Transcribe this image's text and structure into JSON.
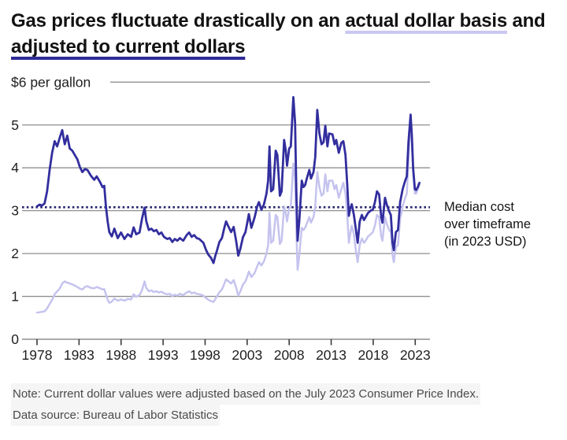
{
  "title": {
    "part1": "Gas prices fluctuate drastically on an ",
    "highlight_actual": "actual dollar basis",
    "part2": " and ",
    "highlight_adjusted": "adjusted to current dollars"
  },
  "annotation": {
    "lines": [
      "Median cost",
      "over timeframe",
      "(in 2023 USD)"
    ]
  },
  "notes": {
    "note": "Note: Current dollar values were adjusted based on the July 2023 Consumer Price Index.",
    "source": "Data source: Bureau of Labor Statistics"
  },
  "colors": {
    "navy": "#322e9e",
    "lavender": "#c5c3ee",
    "median": "#26246d",
    "grid": "#8f8f8f",
    "axis": "#777777",
    "tick": "#3a3a3a",
    "axis_text": "#1f1f1f"
  },
  "chart_data": {
    "type": "line",
    "title": "Gas prices fluctuate drastically on an actual dollar basis and adjusted to current dollars",
    "y_top_label": "$6 per gallon",
    "y_ticks": [
      0,
      1,
      2,
      3,
      4,
      5
    ],
    "y_max": 6,
    "x_ticks": [
      1978,
      1983,
      1988,
      1993,
      1998,
      2003,
      2008,
      2013,
      2018,
      2023
    ],
    "ylim": [
      0,
      6
    ],
    "xlim": [
      1978,
      2024.7
    ],
    "grid": true,
    "legend_position": "title-underlines",
    "median": {
      "value": 3.08,
      "label": "Median cost over timeframe (in 2023 USD)"
    },
    "x": [
      1978.0,
      1978.3,
      1978.6,
      1978.9,
      1979.2,
      1979.5,
      1979.8,
      1980.1,
      1980.4,
      1980.7,
      1981.0,
      1981.3,
      1981.6,
      1981.9,
      1982.2,
      1982.5,
      1982.8,
      1983.1,
      1983.4,
      1983.7,
      1984.0,
      1984.4,
      1984.8,
      1985.1,
      1985.5,
      1985.8,
      1986.0,
      1986.2,
      1986.4,
      1986.6,
      1986.9,
      1987.2,
      1987.6,
      1988.0,
      1988.4,
      1988.8,
      1989.2,
      1989.5,
      1989.8,
      1990.2,
      1990.5,
      1990.8,
      1991.0,
      1991.3,
      1991.6,
      1991.9,
      1992.2,
      1992.5,
      1992.8,
      1993.1,
      1993.5,
      1993.8,
      1994.1,
      1994.4,
      1994.7,
      1995.0,
      1995.4,
      1995.8,
      1996.1,
      1996.4,
      1996.7,
      1997.0,
      1997.3,
      1997.8,
      1998.1,
      1998.4,
      1998.7,
      1999.0,
      1999.2,
      1999.4,
      1999.7,
      2000.0,
      2000.3,
      2000.5,
      2000.8,
      2001.1,
      2001.4,
      2001.7,
      2001.95,
      2002.2,
      2002.5,
      2002.8,
      2003.0,
      2003.2,
      2003.5,
      2003.9,
      2004.2,
      2004.4,
      2004.7,
      2005.0,
      2005.3,
      2005.5,
      2005.66,
      2005.85,
      2006.1,
      2006.4,
      2006.6,
      2006.9,
      2007.1,
      2007.4,
      2007.6,
      2007.75,
      2008.0,
      2008.2,
      2008.5,
      2008.7,
      2008.85,
      2009.0,
      2009.2,
      2009.5,
      2009.7,
      2009.9,
      2010.1,
      2010.4,
      2010.6,
      2010.9,
      2011.1,
      2011.35,
      2011.6,
      2011.85,
      2012.1,
      2012.3,
      2012.55,
      2012.75,
      2013.15,
      2013.4,
      2013.6,
      2013.9,
      2014.2,
      2014.45,
      2014.7,
      2014.9,
      2015.1,
      2015.25,
      2015.45,
      2015.7,
      2015.95,
      2016.15,
      2016.4,
      2016.65,
      2016.9,
      2017.1,
      2017.4,
      2017.7,
      2017.95,
      2018.2,
      2018.45,
      2018.7,
      2018.95,
      2019.1,
      2019.4,
      2019.6,
      2019.9,
      2020.1,
      2020.3,
      2020.45,
      2020.7,
      2020.95,
      2021.2,
      2021.5,
      2021.8,
      2022.0,
      2022.2,
      2022.45,
      2022.6,
      2022.75,
      2022.95,
      2023.1,
      2023.3,
      2023.5
    ],
    "series": [
      {
        "name": "actual dollar basis",
        "color_key": "lavender",
        "values": [
          0.62,
          0.63,
          0.64,
          0.65,
          0.72,
          0.82,
          0.92,
          1.05,
          1.12,
          1.18,
          1.3,
          1.35,
          1.32,
          1.3,
          1.28,
          1.25,
          1.22,
          1.18,
          1.16,
          1.22,
          1.24,
          1.2,
          1.19,
          1.22,
          1.19,
          1.16,
          1.17,
          1.05,
          0.92,
          0.85,
          0.88,
          0.95,
          0.9,
          0.93,
          0.9,
          0.94,
          0.93,
          1.05,
          0.99,
          1.03,
          1.15,
          1.35,
          1.2,
          1.12,
          1.14,
          1.1,
          1.12,
          1.09,
          1.11,
          1.07,
          1.05,
          1.06,
          1.01,
          1.04,
          1.02,
          1.06,
          1.03,
          1.09,
          1.12,
          1.07,
          1.09,
          1.06,
          1.05,
          1.02,
          0.96,
          0.92,
          0.89,
          0.87,
          0.93,
          1.0,
          1.1,
          1.16,
          1.3,
          1.4,
          1.35,
          1.3,
          1.38,
          1.2,
          1.02,
          1.12,
          1.28,
          1.35,
          1.45,
          1.58,
          1.45,
          1.55,
          1.7,
          1.8,
          1.72,
          1.82,
          2.0,
          2.2,
          2.95,
          2.25,
          2.3,
          2.9,
          2.85,
          2.22,
          2.3,
          3.1,
          2.95,
          2.75,
          3.05,
          3.1,
          4.1,
          3.75,
          2.55,
          1.62,
          1.95,
          2.6,
          2.55,
          2.6,
          2.7,
          2.85,
          2.72,
          2.85,
          3.1,
          3.9,
          3.55,
          3.35,
          3.4,
          3.85,
          3.45,
          3.7,
          3.7,
          3.5,
          3.6,
          3.3,
          3.5,
          3.65,
          3.4,
          2.95,
          2.25,
          2.45,
          2.65,
          2.45,
          2.05,
          1.8,
          2.2,
          2.35,
          2.25,
          2.3,
          2.4,
          2.45,
          2.5,
          2.65,
          2.9,
          2.85,
          2.4,
          2.3,
          2.85,
          2.7,
          2.55,
          2.5,
          1.95,
          1.8,
          2.15,
          2.2,
          2.8,
          3.1,
          3.3,
          3.4,
          4.2,
          5.1,
          4.6,
          3.9,
          3.4,
          3.4,
          3.5,
          3.6
        ]
      },
      {
        "name": "adjusted to current dollars (2023 USD)",
        "color_key": "navy",
        "values": [
          3.1,
          3.14,
          3.12,
          3.17,
          3.45,
          3.95,
          4.35,
          4.62,
          4.5,
          4.7,
          4.88,
          4.55,
          4.75,
          4.45,
          4.4,
          4.3,
          4.2,
          4.02,
          3.9,
          3.97,
          3.95,
          3.82,
          3.72,
          3.8,
          3.67,
          3.55,
          3.58,
          3.1,
          2.75,
          2.5,
          2.4,
          2.58,
          2.36,
          2.49,
          2.34,
          2.45,
          2.39,
          2.61,
          2.45,
          2.49,
          2.82,
          3.07,
          2.76,
          2.55,
          2.58,
          2.52,
          2.55,
          2.45,
          2.49,
          2.39,
          2.34,
          2.36,
          2.27,
          2.34,
          2.3,
          2.36,
          2.3,
          2.43,
          2.49,
          2.39,
          2.43,
          2.36,
          2.34,
          2.25,
          2.09,
          1.97,
          1.9,
          1.78,
          1.94,
          2.06,
          2.27,
          2.36,
          2.61,
          2.75,
          2.62,
          2.5,
          2.62,
          2.28,
          1.95,
          2.12,
          2.38,
          2.5,
          2.7,
          2.92,
          2.6,
          2.85,
          3.1,
          3.2,
          3.02,
          3.15,
          3.4,
          3.7,
          4.5,
          3.45,
          3.5,
          4.4,
          4.3,
          3.35,
          3.45,
          4.65,
          4.4,
          4.05,
          4.45,
          4.5,
          5.65,
          5.05,
          3.45,
          2.3,
          2.75,
          3.7,
          3.55,
          3.6,
          3.75,
          3.95,
          3.75,
          3.9,
          4.25,
          5.35,
          4.8,
          4.55,
          4.6,
          4.98,
          4.5,
          4.8,
          4.78,
          4.55,
          4.65,
          4.35,
          4.58,
          4.62,
          4.3,
          3.65,
          2.88,
          3.05,
          3.15,
          2.9,
          2.55,
          2.25,
          2.75,
          2.9,
          2.78,
          2.85,
          2.95,
          3.0,
          3.02,
          3.2,
          3.45,
          3.38,
          2.85,
          2.72,
          3.3,
          3.15,
          2.98,
          2.9,
          2.25,
          2.08,
          2.5,
          2.55,
          3.2,
          3.5,
          3.7,
          3.8,
          4.6,
          5.24,
          4.75,
          4.0,
          3.5,
          3.48,
          3.55,
          3.65
        ]
      }
    ]
  }
}
